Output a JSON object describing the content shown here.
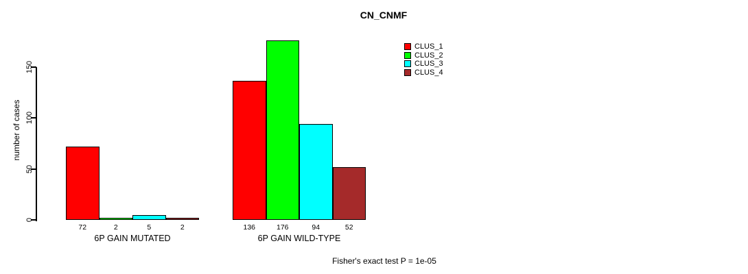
{
  "chart_data": {
    "type": "bar",
    "title": "CN_CNMF",
    "ylabel": "number of cases",
    "xlabel": "",
    "groups": [
      "6P GAIN MUTATED",
      "6P GAIN WILD-TYPE"
    ],
    "series": [
      {
        "name": "CLUS_1",
        "color": "#ff0000",
        "values": [
          72,
          136
        ]
      },
      {
        "name": "CLUS_2",
        "color": "#00ff00",
        "values": [
          2,
          176
        ]
      },
      {
        "name": "CLUS_3",
        "color": "#00ffff",
        "values": [
          5,
          94
        ]
      },
      {
        "name": "CLUS_4",
        "color": "#a52a2a",
        "values": [
          2,
          52
        ]
      }
    ],
    "yticks": [
      0,
      50,
      100,
      150
    ],
    "ylim": [
      0,
      176
    ],
    "grid": false,
    "legend_position": "top-right",
    "legend_labels": [
      "CLUS_1",
      "CLUS_2",
      "CLUS_3",
      "CLUS_4"
    ],
    "bar_value_labels_shown": true,
    "annotation": "Fisher's exact test P = 1e-05"
  }
}
